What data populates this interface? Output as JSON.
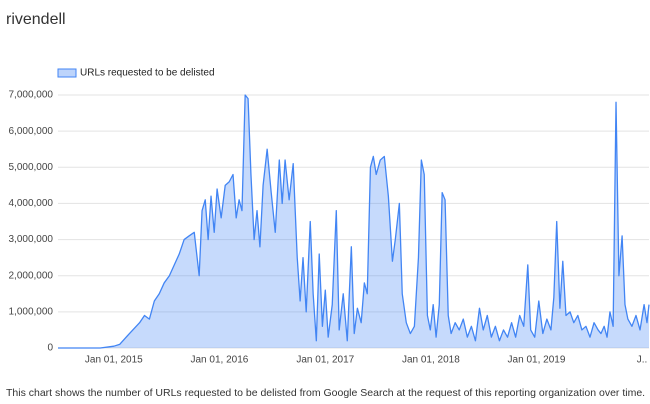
{
  "chart_data": {
    "type": "area",
    "title": "rivendell",
    "caption": "This chart shows the number of URLs requested to be delisted from Google Search at the request of this reporting organization over time.",
    "legend": "top-left",
    "grid": true,
    "xlim": [
      "2014-06-22",
      "2020-01-25"
    ],
    "xticks": [
      {
        "value": "2015-01-01",
        "label": "Jan 01, 2015"
      },
      {
        "value": "2016-01-01",
        "label": "Jan 01, 2016"
      },
      {
        "value": "2017-01-01",
        "label": "Jan 01, 2017"
      },
      {
        "value": "2018-01-01",
        "label": "Jan 01, 2018"
      },
      {
        "value": "2019-01-01",
        "label": "Jan 01, 2019"
      },
      {
        "value": "2020-01-01",
        "label": "J.."
      }
    ],
    "ylim": [
      0,
      7000000
    ],
    "yticks": [
      0,
      {
        "value": 1000000,
        "label": "1,000,000"
      },
      {
        "value": 2000000,
        "label": "2,000,000"
      },
      {
        "value": 3000000,
        "label": "3,000,000"
      },
      {
        "value": 4000000,
        "label": "4,000,000"
      },
      {
        "value": 5000000,
        "label": "5,000,000"
      },
      {
        "value": 6000000,
        "label": "6,000,000"
      },
      {
        "value": 7000000,
        "label": "7,000,000"
      }
    ],
    "x": [
      "2014-06-22",
      "2014-11-15",
      "2015-01-01",
      "2015-01-21",
      "2015-02-24",
      "2015-03-31",
      "2015-04-17",
      "2015-05-04",
      "2015-05-21",
      "2015-06-07",
      "2015-06-24",
      "2015-07-12",
      "2015-07-29",
      "2015-08-15",
      "2015-09-01",
      "2015-09-18",
      "2015-10-06",
      "2015-10-23",
      "2015-11-02",
      "2015-11-13",
      "2015-11-23",
      "2015-12-03",
      "2015-12-14",
      "2015-12-24",
      "2016-01-07",
      "2016-01-21",
      "2016-02-04",
      "2016-02-17",
      "2016-02-28",
      "2016-03-09",
      "2016-03-19",
      "2016-03-30",
      "2016-04-09",
      "2016-04-19",
      "2016-04-30",
      "2016-05-10",
      "2016-05-20",
      "2016-05-31",
      "2016-06-14",
      "2016-06-28",
      "2016-07-12",
      "2016-07-26",
      "2016-08-05",
      "2016-08-15",
      "2016-08-29",
      "2016-09-12",
      "2016-09-26",
      "2016-10-06",
      "2016-10-16",
      "2016-10-27",
      "2016-11-10",
      "2016-11-20",
      "2016-12-01",
      "2016-12-11",
      "2016-12-22",
      "2017-01-01",
      "2017-01-11",
      "2017-01-25",
      "2017-02-08",
      "2017-02-18",
      "2017-03-04",
      "2017-03-18",
      "2017-04-01",
      "2017-04-11",
      "2017-04-22",
      "2017-05-05",
      "2017-05-16",
      "2017-05-26",
      "2017-06-06",
      "2017-06-16",
      "2017-06-26",
      "2017-07-10",
      "2017-07-24",
      "2017-08-07",
      "2017-08-21",
      "2017-08-31",
      "2017-09-14",
      "2017-09-24",
      "2017-10-08",
      "2017-10-22",
      "2017-11-05",
      "2017-11-19",
      "2017-11-29",
      "2017-12-09",
      "2017-12-20",
      "2017-12-30",
      "2018-01-09",
      "2018-01-19",
      "2018-01-30",
      "2018-02-09",
      "2018-02-19",
      "2018-03-02",
      "2018-03-12",
      "2018-03-26",
      "2018-04-09",
      "2018-04-23",
      "2018-05-07",
      "2018-05-21",
      "2018-06-04",
      "2018-06-18",
      "2018-07-01",
      "2018-07-15",
      "2018-07-29",
      "2018-08-12",
      "2018-08-26",
      "2018-09-09",
      "2018-09-23",
      "2018-10-07",
      "2018-10-21",
      "2018-11-04",
      "2018-11-18",
      "2018-12-02",
      "2018-12-12",
      "2018-12-26",
      "2019-01-09",
      "2019-01-23",
      "2019-02-06",
      "2019-02-20",
      "2019-03-02",
      "2019-03-12",
      "2019-03-23",
      "2019-04-02",
      "2019-04-13",
      "2019-04-27",
      "2019-05-10",
      "2019-05-24",
      "2019-06-07",
      "2019-06-21",
      "2019-07-05",
      "2019-07-19",
      "2019-08-02",
      "2019-08-12",
      "2019-08-23",
      "2019-09-02",
      "2019-09-12",
      "2019-09-23",
      "2019-10-03",
      "2019-10-13",
      "2019-10-24",
      "2019-11-03",
      "2019-11-13",
      "2019-11-27",
      "2019-12-11",
      "2019-12-25",
      "2020-01-08",
      "2020-01-18",
      "2020-01-25"
    ],
    "series": [
      {
        "name": "URLs requested to be delisted",
        "color": "#4285f4",
        "values": [
          0,
          0,
          50000,
          100000,
          400000,
          700000,
          900000,
          800000,
          1300000,
          1500000,
          1800000,
          2000000,
          2300000,
          2600000,
          3000000,
          3100000,
          3200000,
          2000000,
          3800000,
          4100000,
          3000000,
          4200000,
          3200000,
          4400000,
          3600000,
          4500000,
          4600000,
          4800000,
          3600000,
          4100000,
          3800000,
          7000000,
          6900000,
          4800000,
          3000000,
          3800000,
          2800000,
          4500000,
          5500000,
          4300000,
          3200000,
          5200000,
          4000000,
          5200000,
          4100000,
          5100000,
          2500000,
          1300000,
          2500000,
          1000000,
          3500000,
          1500000,
          200000,
          2600000,
          600000,
          1600000,
          300000,
          1200000,
          3800000,
          500000,
          1500000,
          200000,
          2800000,
          400000,
          1100000,
          700000,
          1800000,
          1500000,
          5000000,
          5300000,
          4800000,
          5200000,
          5300000,
          4200000,
          2400000,
          3000000,
          4000000,
          1500000,
          700000,
          400000,
          600000,
          2500000,
          5200000,
          4800000,
          900000,
          500000,
          1200000,
          300000,
          1200000,
          4300000,
          4100000,
          900000,
          400000,
          700000,
          500000,
          800000,
          300000,
          600000,
          200000,
          1100000,
          500000,
          900000,
          300000,
          600000,
          200000,
          500000,
          300000,
          700000,
          300000,
          900000,
          600000,
          2300000,
          500000,
          300000,
          1300000,
          400000,
          800000,
          500000,
          1400000,
          3500000,
          1100000,
          2400000,
          900000,
          1000000,
          700000,
          900000,
          500000,
          600000,
          300000,
          700000,
          500000,
          400000,
          600000,
          300000,
          1000000,
          600000,
          6800000,
          2000000,
          3100000,
          1200000,
          800000,
          600000,
          900000,
          500000,
          1200000,
          700000,
          1200000
        ]
      }
    ]
  }
}
